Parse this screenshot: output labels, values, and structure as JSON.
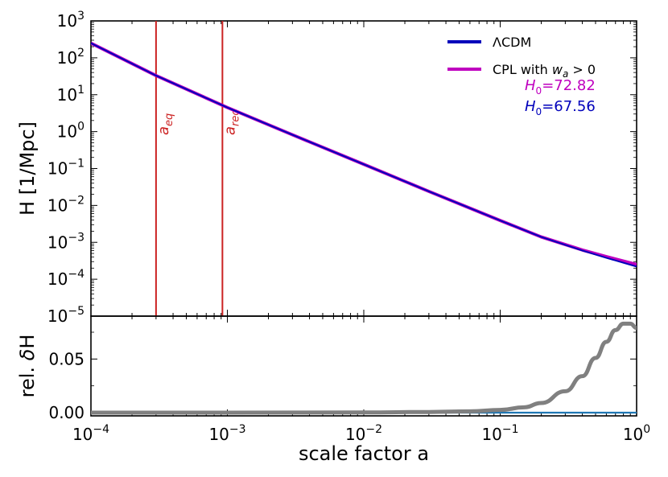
{
  "chart_data": [
    {
      "type": "line",
      "ylabel": "H [1/Mpc]",
      "xscale": "log",
      "yscale": "log",
      "xlim": [
        0.0001,
        1
      ],
      "ylim": [
        1e-05,
        1000
      ],
      "xticks": [
        0.0001,
        0.001,
        0.01,
        0.1,
        1
      ],
      "yticks": [
        1e-05,
        0.0001,
        0.001,
        0.01,
        0.1,
        1,
        10,
        100,
        1000
      ],
      "ytick_labels": [
        {
          "base": "10",
          "exp": "−5"
        },
        {
          "base": "10",
          "exp": "−4"
        },
        {
          "base": "10",
          "exp": "−3"
        },
        {
          "base": "10",
          "exp": "−2"
        },
        {
          "base": "10",
          "exp": "−1"
        },
        {
          "base": "10",
          "exp": "0"
        },
        {
          "base": "10",
          "exp": "1"
        },
        {
          "base": "10",
          "exp": "2"
        },
        {
          "base": "10",
          "exp": "3"
        }
      ],
      "legend_position": "top-right",
      "series": [
        {
          "name": "ΛCDM",
          "color": "#0000bb",
          "x": [
            0.0001,
            0.0003,
            0.001,
            0.003,
            0.01,
            0.03,
            0.1,
            0.2,
            0.4,
            0.6,
            0.8,
            1.0
          ],
          "y": [
            250,
            33,
            4.5,
            0.82,
            0.13,
            0.024,
            0.0039,
            0.0014,
            0.0006,
            0.00038,
            0.00028,
            0.00022
          ]
        },
        {
          "name": "CPL with w_a > 0",
          "legend_parts": {
            "prefix": "CPL with ",
            "var": "w",
            "sub": "a",
            "suffix": " > 0"
          },
          "color": "#bf00bf",
          "x": [
            0.0001,
            0.0003,
            0.001,
            0.003,
            0.01,
            0.03,
            0.1,
            0.2,
            0.4,
            0.6,
            0.8,
            1.0
          ],
          "y": [
            250,
            33,
            4.5,
            0.82,
            0.13,
            0.024,
            0.0039,
            0.0014,
            0.00062,
            0.00041,
            0.00031,
            0.00025
          ]
        }
      ],
      "vlines": [
        {
          "x": 0.0003,
          "color": "#cc2222",
          "label_var": "a",
          "label_sub": "eq"
        },
        {
          "x": 0.00092,
          "color": "#cc2222",
          "label_var": "a",
          "label_sub": "rec"
        }
      ],
      "annotations": [
        {
          "var": "H",
          "sub": "0",
          "value": "=72.82",
          "color": "#bf00bf"
        },
        {
          "var": "H",
          "sub": "0",
          "value": "=67.56",
          "color": "#0000bb"
        }
      ]
    },
    {
      "type": "line",
      "xlabel": "scale factor a",
      "ylabel": "rel. δH",
      "xscale": "log",
      "xlim": [
        0.0001,
        1
      ],
      "ylim": [
        -0.003,
        0.09
      ],
      "xticks": [
        0.0001,
        0.001,
        0.01,
        0.1,
        1
      ],
      "xtick_labels": [
        {
          "base": "10",
          "exp": "−4"
        },
        {
          "base": "10",
          "exp": "−3"
        },
        {
          "base": "10",
          "exp": "−2"
        },
        {
          "base": "10",
          "exp": "−1"
        },
        {
          "base": "10",
          "exp": "0"
        }
      ],
      "yticks": [
        0.0,
        0.05
      ],
      "ytick_labels": [
        "0.00",
        "0.05"
      ],
      "series": [
        {
          "color": "#808080",
          "x": [
            0.0001,
            0.001,
            0.01,
            0.03,
            0.06,
            0.1,
            0.15,
            0.2,
            0.3,
            0.4,
            0.5,
            0.6,
            0.7,
            0.8,
            0.9,
            1.0
          ],
          "y": [
            0.0,
            0.0,
            0.0002,
            0.0006,
            0.0012,
            0.0025,
            0.005,
            0.009,
            0.02,
            0.034,
            0.051,
            0.066,
            0.077,
            0.083,
            0.083,
            0.079
          ]
        },
        {
          "color": "#1f77b4",
          "x": [
            0.0001,
            1.0
          ],
          "y": [
            0.0,
            0.0
          ]
        }
      ]
    }
  ]
}
